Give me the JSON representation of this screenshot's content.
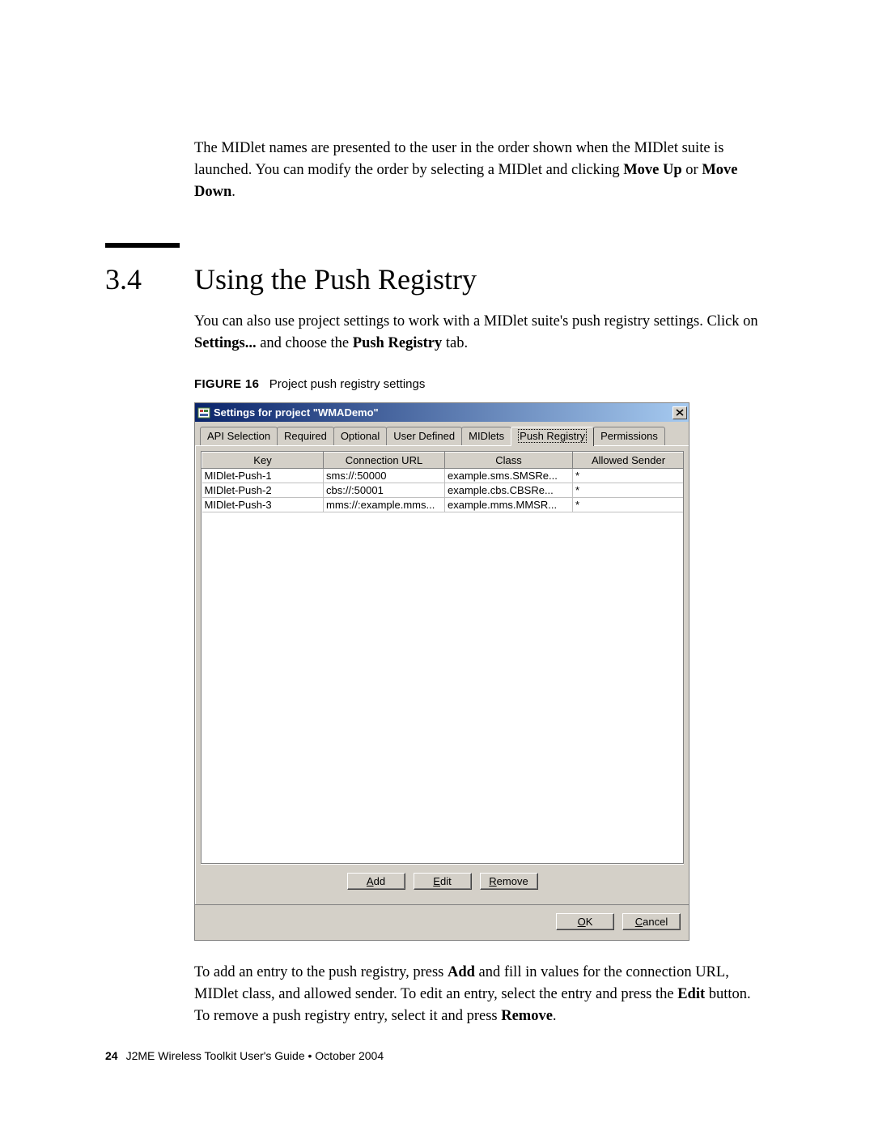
{
  "intro": {
    "text_pre": "The MIDlet names are presented to the user in the order shown when the MIDlet suite is launched. You can modify the order by selecting a MIDlet and clicking ",
    "bold1": "Move Up",
    "mid": " or ",
    "bold2": "Move Down",
    "tail": "."
  },
  "section": {
    "number": "3.4",
    "title": "Using the Push Registry",
    "para_pre": "You can also use project settings to work with a MIDlet suite's push registry settings. Click on ",
    "bold1": "Settings...",
    "mid": " and choose the ",
    "bold2": "Push Registry",
    "tail": " tab."
  },
  "figure": {
    "label": "FIGURE 16",
    "caption": "Project push registry settings"
  },
  "dialog": {
    "title": "Settings for project \"WMADemo\"",
    "tabs": [
      "API Selection",
      "Required",
      "Optional",
      "User Defined",
      "MIDlets",
      "Push Registry",
      "Permissions"
    ],
    "active_tab_index": 5,
    "columns": [
      "Key",
      "Connection URL",
      "Class",
      "Allowed Sender"
    ],
    "col_widths": [
      "150px",
      "150px",
      "158px",
      "138px"
    ],
    "rows": [
      [
        "MIDlet-Push-1",
        "sms://:50000",
        "example.sms.SMSRe...",
        "*"
      ],
      [
        "MIDlet-Push-2",
        "cbs://:50001",
        "example.cbs.CBSRe...",
        "*"
      ],
      [
        "MIDlet-Push-3",
        "mms://:example.mms...",
        "example.mms.MMSR...",
        "*"
      ]
    ],
    "buttons": {
      "add": {
        "u": "A",
        "rest": "dd"
      },
      "edit": {
        "u": "E",
        "rest": "dit"
      },
      "remove": {
        "u": "R",
        "rest": "emove"
      },
      "ok": {
        "u": "O",
        "rest": "K"
      },
      "cancel": {
        "u": "C",
        "rest": "ancel"
      }
    },
    "colors": {
      "titlebar_start": "#0a246a",
      "titlebar_end": "#a6caf0",
      "face": "#d4d0c8",
      "border_dark": "#808080",
      "border_light": "#ffffff"
    }
  },
  "after": {
    "p1_pre": "To add an entry to the push registry, press ",
    "p1_b1": "Add",
    "p1_mid1": " and fill in values for the connection URL, MIDlet class, and allowed sender. To edit an entry, select the entry and press the ",
    "p1_b2": "Edit",
    "p1_mid2": " button. To remove a push registry entry, select it and press ",
    "p1_b3": "Remove",
    "p1_tail": "."
  },
  "footer": {
    "page": "24",
    "text": "J2ME Wireless Toolkit User's Guide  •  October 2004"
  }
}
